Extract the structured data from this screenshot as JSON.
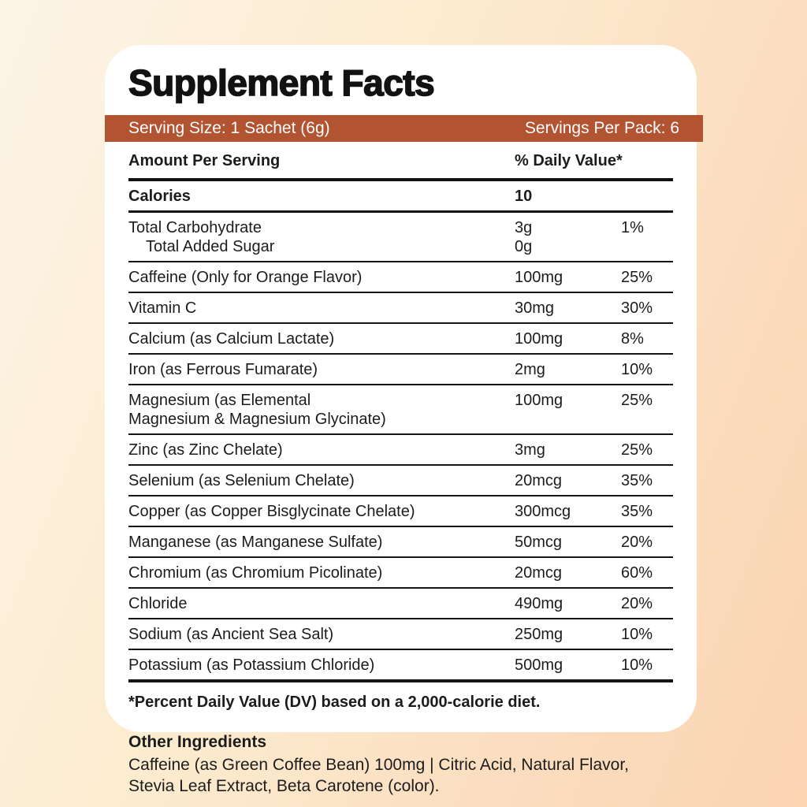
{
  "colors": {
    "accent_bar": "#b25331",
    "card_background": "#ffffff",
    "page_gradient_start": "#fdf4e7",
    "page_gradient_end": "#fbd4b2",
    "text": "#1c1c1c"
  },
  "card": {
    "title": "Supplement Facts",
    "serving_bar": {
      "left": "Serving Size: 1 Sachet (6g)",
      "right": "Servings Per Pack: 6"
    },
    "table": {
      "header": {
        "amount_col": "Amount Per Serving",
        "dv_col": "% Daily Value*"
      },
      "rows": [
        {
          "label": "Calories",
          "amount": "10",
          "dv": "",
          "bold": true
        },
        {
          "label": "Total Carbohydrate",
          "label2": "Total Added Sugar",
          "label2_indent": true,
          "amount": "3g",
          "amount2": "0g",
          "dv": "1%"
        },
        {
          "label": "Caffeine (Only for Orange Flavor)",
          "amount": "100mg",
          "dv": "25%"
        },
        {
          "label": "Vitamin C",
          "amount": "30mg",
          "dv": "30%"
        },
        {
          "label": "Calcium (as Calcium Lactate)",
          "amount": "100mg",
          "dv": "8%"
        },
        {
          "label": "Iron (as Ferrous Fumarate)",
          "amount": "2mg",
          "dv": "10%"
        },
        {
          "label": "Magnesium (as Elemental",
          "label2": "Magnesium & Magnesium Glycinate)",
          "label2_indent": false,
          "amount": "100mg",
          "dv": "25%"
        },
        {
          "label": "Zinc (as Zinc Chelate)",
          "amount": "3mg",
          "dv": "25%"
        },
        {
          "label": "Selenium (as Selenium Chelate)",
          "amount": "20mcg",
          "dv": "35%"
        },
        {
          "label": "Copper (as Copper Bisglycinate Chelate)",
          "amount": "300mcg",
          "dv": "35%"
        },
        {
          "label": "Manganese (as Manganese Sulfate)",
          "amount": "50mcg",
          "dv": "20%"
        },
        {
          "label": "Chromium (as Chromium Picolinate)",
          "amount": "20mcg",
          "dv": "60%"
        },
        {
          "label": "Chloride",
          "amount": "490mg",
          "dv": "20%"
        },
        {
          "label": "Sodium (as Ancient Sea Salt)",
          "amount": "250mg",
          "dv": "10%"
        },
        {
          "label": "Potassium (as Potassium Chloride)",
          "amount": "500mg",
          "dv": "10%"
        }
      ],
      "footnote": "*Percent Daily Value (DV) based on a 2,000-calorie diet."
    }
  },
  "other_ingredients": {
    "title": "Other Ingredients",
    "lines": [
      "Caffeine (as Green Coffee Bean) 100mg | Citric Acid, Natural Flavor,",
      "Stevia Leaf Extract, Beta Carotene (color)."
    ]
  }
}
